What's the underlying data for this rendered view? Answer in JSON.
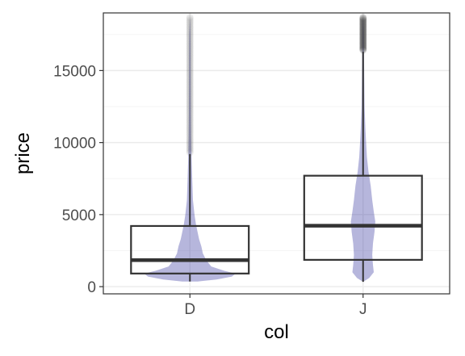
{
  "chart_data": {
    "type": "violin+box",
    "xlabel": "col",
    "ylabel": "price",
    "categories": [
      "D",
      "J"
    ],
    "ylim": [
      -500,
      19000
    ],
    "yticks": [
      0,
      5000,
      10000,
      15000
    ],
    "ytick_labels": [
      "0",
      "5000",
      "10000",
      "15000"
    ],
    "grid": true,
    "colors": {
      "violin_fill": "#2e2e9a",
      "violin_opacity": 0.35,
      "box_stroke": "#333333",
      "grid_major": "#ebebeb",
      "grid_minor": "#f5f5f5",
      "panel_border": "#333333",
      "outlier": "#333333"
    },
    "series": [
      {
        "category": "D",
        "box": {
          "q1": 910,
          "median": 1840,
          "q3": 4210,
          "whisker_low": 357,
          "whisker_high": 9200
        },
        "violin_profile": [
          [
            357,
            0.1
          ],
          [
            500,
            0.35
          ],
          [
            700,
            0.55
          ],
          [
            900,
            0.6
          ],
          [
            1100,
            0.45
          ],
          [
            1400,
            0.28
          ],
          [
            1800,
            0.22
          ],
          [
            2300,
            0.17
          ],
          [
            2800,
            0.15
          ],
          [
            3300,
            0.12
          ],
          [
            3800,
            0.1
          ],
          [
            4300,
            0.08
          ],
          [
            5000,
            0.06
          ],
          [
            6000,
            0.04
          ],
          [
            7500,
            0.03
          ],
          [
            9000,
            0.022
          ],
          [
            10500,
            0.016
          ],
          [
            12000,
            0.013
          ],
          [
            14000,
            0.011
          ],
          [
            16000,
            0.01
          ],
          [
            17500,
            0.008
          ],
          [
            18700,
            0.0
          ]
        ],
        "outlier_range": [
          9300,
          18700
        ]
      },
      {
        "category": "J",
        "box": {
          "q1": 1860,
          "median": 4230,
          "q3": 7700,
          "whisker_low": 335,
          "whisker_high": 16300
        },
        "violin_profile": [
          [
            335,
            0.0
          ],
          [
            600,
            0.08
          ],
          [
            1000,
            0.14
          ],
          [
            1500,
            0.13
          ],
          [
            2200,
            0.12
          ],
          [
            3000,
            0.13
          ],
          [
            3800,
            0.15
          ],
          [
            4500,
            0.16
          ],
          [
            5200,
            0.14
          ],
          [
            6000,
            0.12
          ],
          [
            7000,
            0.1
          ],
          [
            8000,
            0.07
          ],
          [
            9000,
            0.05
          ],
          [
            10000,
            0.04
          ],
          [
            11000,
            0.03
          ],
          [
            12500,
            0.02
          ],
          [
            14000,
            0.016
          ],
          [
            16000,
            0.012
          ],
          [
            17500,
            0.01
          ],
          [
            18700,
            0.0
          ]
        ],
        "outlier_range": [
          16400,
          18700
        ]
      }
    ]
  }
}
